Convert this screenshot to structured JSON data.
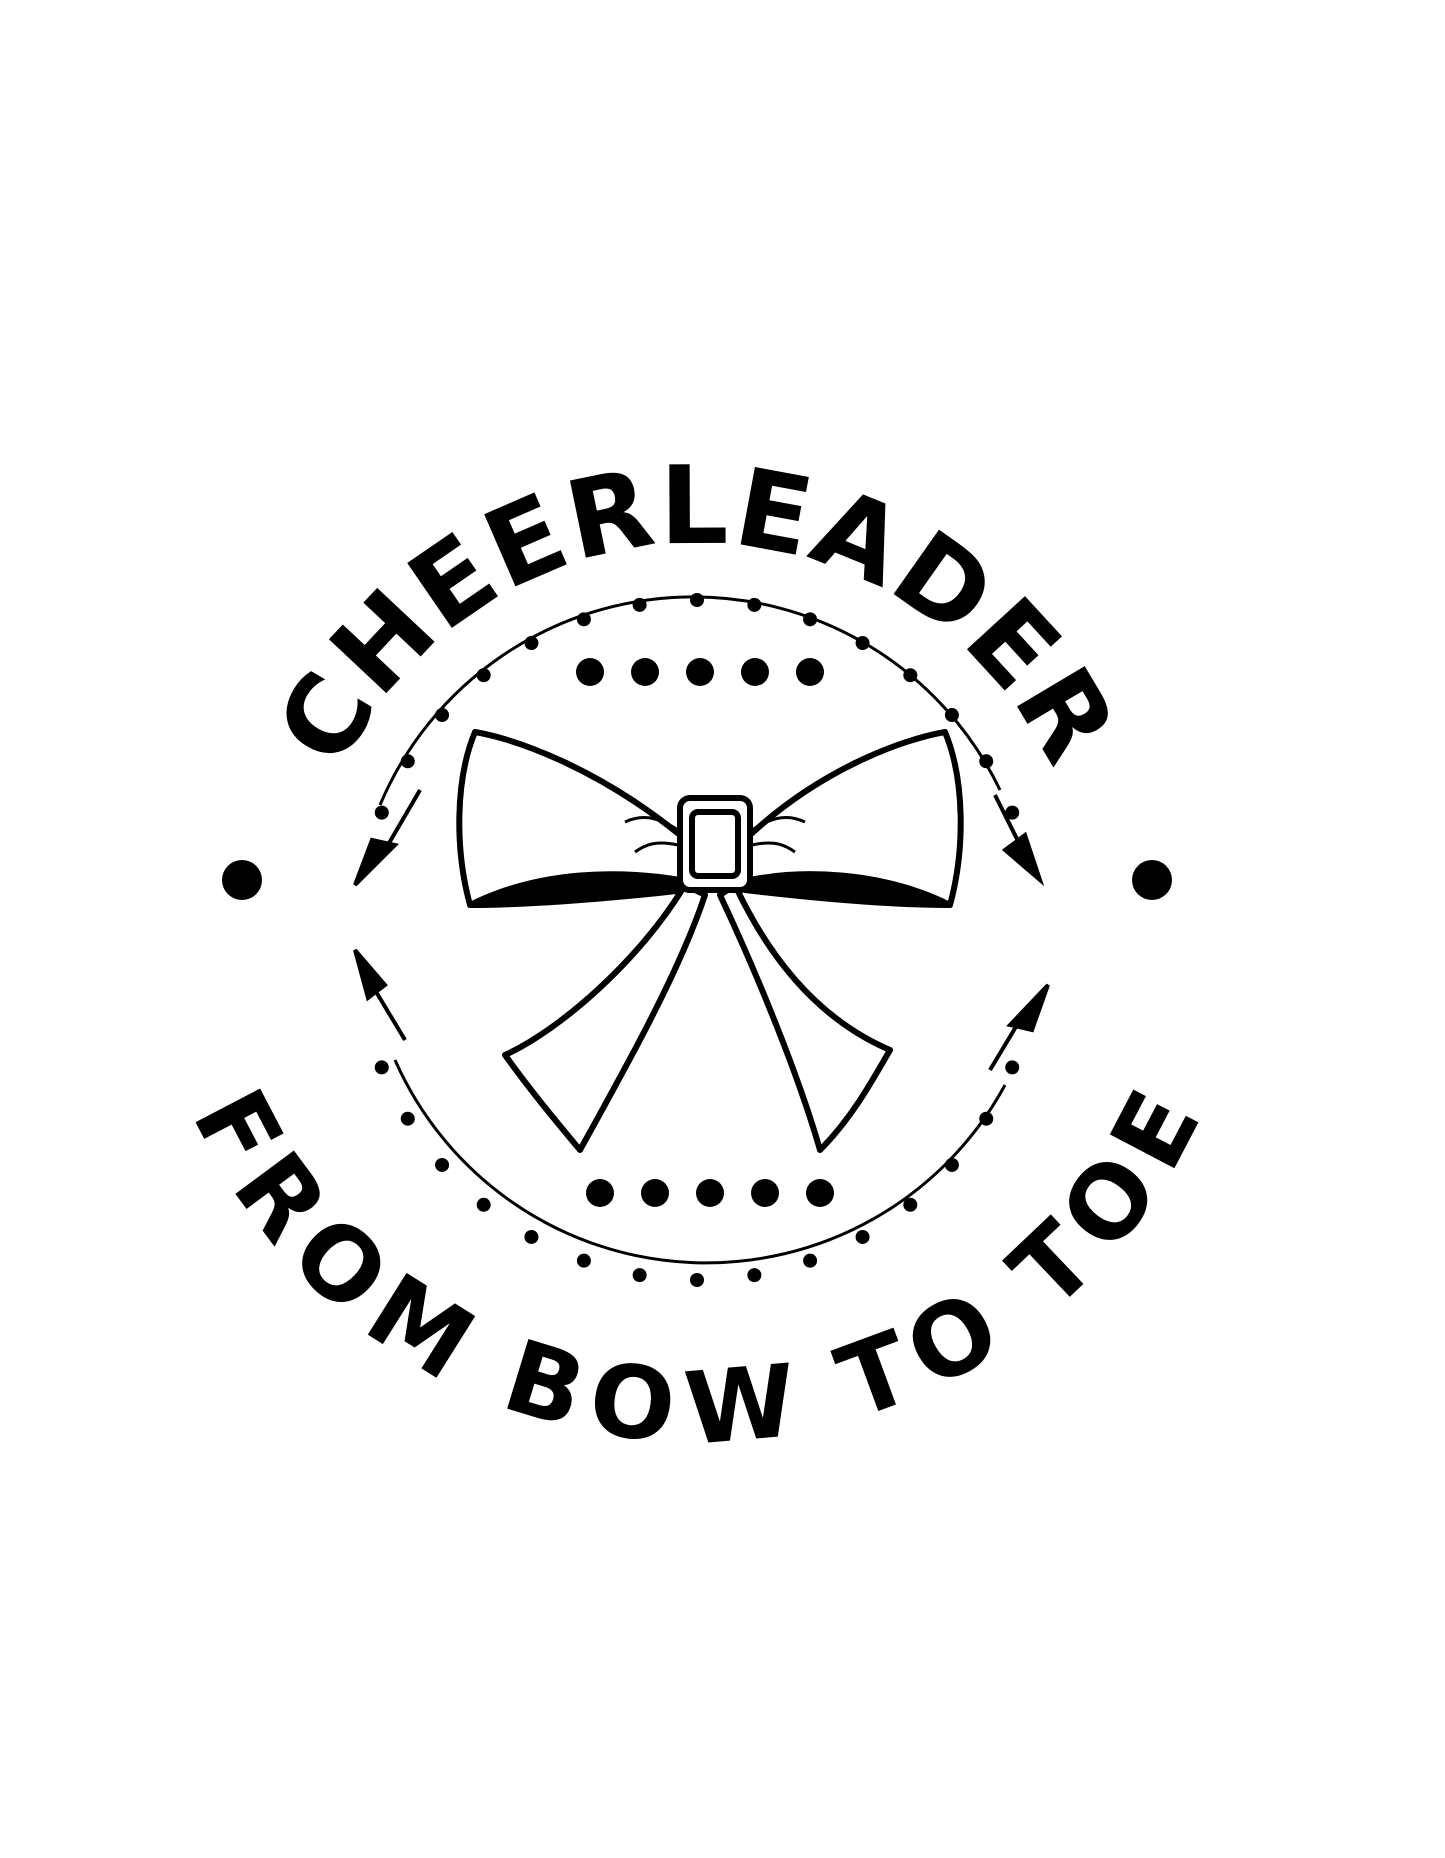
{
  "logo": {
    "top_text": "CHEERLEADER",
    "bottom_text": "FROM BOW TO TOE",
    "ink_color": "#000000",
    "background_color": "#ffffff",
    "icons": [
      "bow-icon",
      "arrow-icon",
      "dot-icon"
    ]
  }
}
